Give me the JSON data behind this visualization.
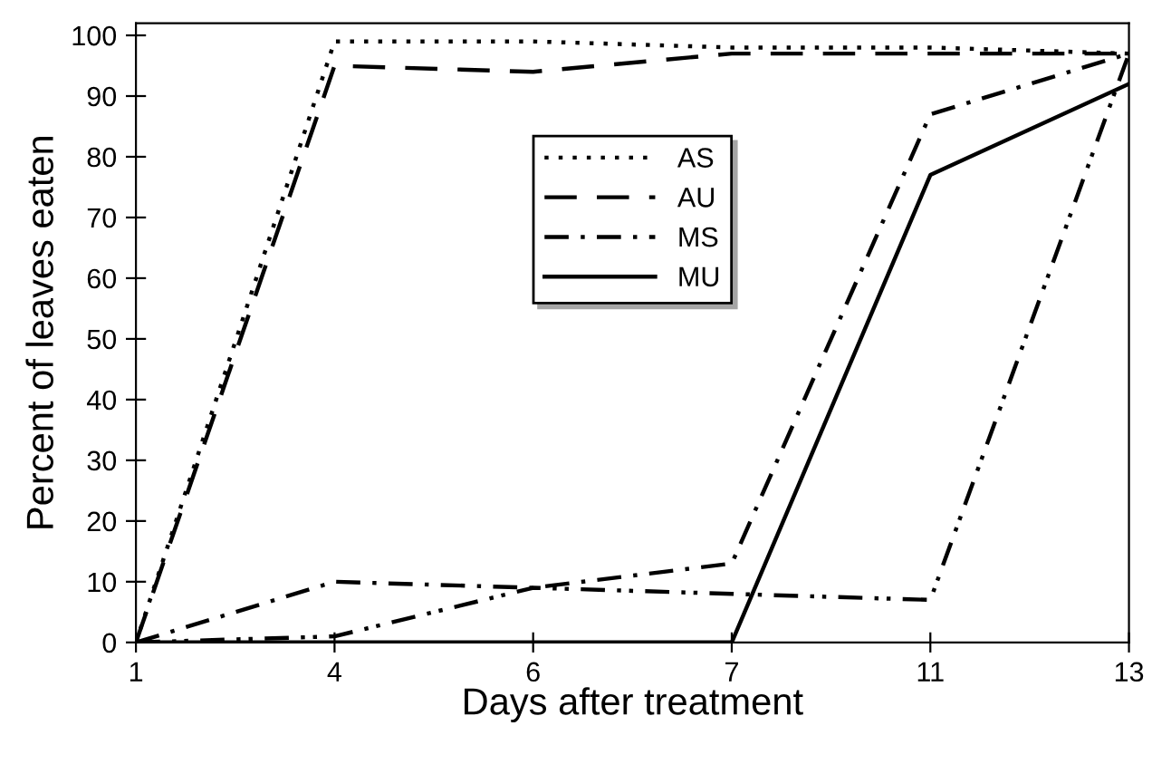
{
  "chart_data": {
    "type": "line",
    "xlabel": "Days after treatment",
    "ylabel": "Percent of leaves eaten",
    "categories": [
      "1",
      "4",
      "6",
      "7",
      "11",
      "13"
    ],
    "series": [
      {
        "name": "AS",
        "color": "#000000",
        "line_style": "dotted",
        "values": [
          0,
          99,
          99,
          98,
          98,
          97
        ]
      },
      {
        "name": "AU",
        "color": "#000000",
        "line_style": "dashed",
        "values": [
          0,
          95,
          94,
          97,
          97,
          97
        ]
      },
      {
        "name": "MS",
        "color": "#000000",
        "line_style": "dashdot",
        "values": [
          0,
          10,
          9,
          13,
          87,
          97
        ]
      },
      {
        "name": "MU",
        "color": "#000000",
        "line_style": "solid",
        "values": [
          0,
          0,
          0,
          0,
          77,
          92
        ]
      },
      {
        "color": "#000000",
        "line_style": "dashdotdot",
        "values": [
          0,
          1,
          9,
          8,
          7,
          97
        ]
      }
    ],
    "ylim": [
      0,
      102
    ],
    "yticks": [
      0,
      10,
      20,
      30,
      40,
      50,
      60,
      70,
      80,
      90,
      100
    ],
    "grid": false,
    "legend": "top",
    "marker": "none"
  }
}
